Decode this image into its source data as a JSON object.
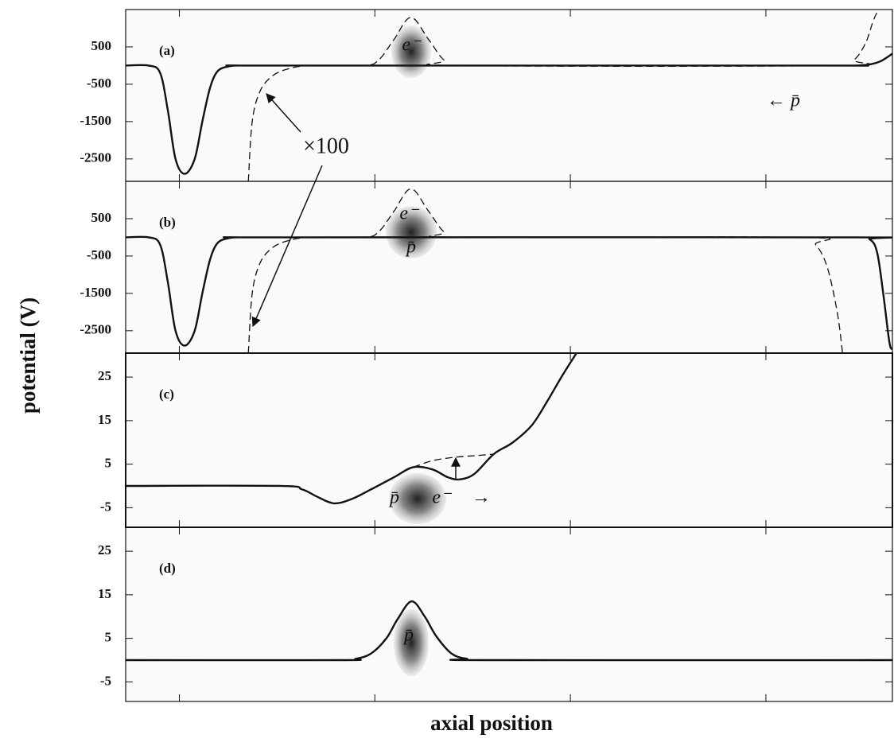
{
  "chart_data": [
    {
      "type": "line",
      "panel_label": "(a)",
      "ylabel": "potential (V)",
      "xlim": [
        0,
        100
      ],
      "xticks": [
        7,
        32.5,
        58,
        83.5
      ],
      "ylim": [
        -3100,
        1500
      ],
      "yticks": [
        500,
        -500,
        -1500,
        -2500
      ],
      "annotations": [
        "e⁻",
        "← p̄",
        "×100"
      ],
      "series": [
        {
          "style": "solid",
          "color": "#111111",
          "x": [
            0,
            3,
            4.5,
            5.5,
            6.5,
            7.7,
            9,
            10,
            11,
            12,
            13.5,
            15,
            20,
            90,
            95,
            97,
            98.5,
            100
          ],
          "values": [
            0,
            0,
            -200,
            -1200,
            -2500,
            -2900,
            -2500,
            -1500,
            -600,
            -150,
            -20,
            0,
            0,
            0,
            0,
            30,
            120,
            320
          ]
        },
        {
          "style": "dashed",
          "color": "#111111",
          "x": [
            16,
            16.5,
            17.5,
            19,
            21,
            24,
            31,
            33,
            35,
            37.2,
            39.5,
            41.5,
            43.5,
            93,
            95,
            96.5,
            97.5,
            98.2
          ],
          "values": [
            -3100,
            -1500,
            -700,
            -300,
            -100,
            0,
            0,
            150,
            700,
            1290,
            700,
            150,
            0,
            0,
            150,
            600,
            1200,
            1500
          ]
        }
      ]
    },
    {
      "type": "line",
      "panel_label": "(b)",
      "xlim": [
        0,
        100
      ],
      "xticks": [
        7,
        32.5,
        58,
        83.5
      ],
      "ylim": [
        -3100,
        1500
      ],
      "yticks": [
        500,
        -500,
        -1500,
        -2500
      ],
      "annotations": [
        "e⁻",
        "p̄"
      ],
      "series": [
        {
          "style": "solid",
          "color": "#111111",
          "x": [
            0,
            3,
            4.5,
            5.5,
            6.5,
            7.7,
            9,
            10,
            11,
            12,
            13.5,
            15,
            20,
            95,
            97,
            98,
            98.8,
            99.6,
            100
          ],
          "values": [
            0,
            0,
            -200,
            -1200,
            -2500,
            -2900,
            -2500,
            -1500,
            -600,
            -150,
            -20,
            0,
            0,
            0,
            -50,
            -400,
            -1500,
            -2800,
            -3000
          ]
        },
        {
          "style": "dashed",
          "color": "#111111",
          "x": [
            16,
            16.5,
            17.5,
            19,
            21,
            24,
            31,
            33,
            35,
            37.2,
            39.5,
            41.5,
            43.5,
            88,
            90,
            91.5,
            92.8,
            93.5
          ],
          "values": [
            -3100,
            -1500,
            -700,
            -300,
            -100,
            0,
            0,
            150,
            700,
            1300,
            700,
            150,
            0,
            0,
            -200,
            -800,
            -2000,
            -3100
          ]
        }
      ]
    },
    {
      "type": "line",
      "panel_label": "(c)",
      "xlim": [
        0,
        100
      ],
      "xticks": [
        7,
        32.5,
        58,
        83.5
      ],
      "ylim": [
        -9.5,
        30.5
      ],
      "yticks": [
        25,
        15,
        5,
        -5
      ],
      "annotations": [
        "p̄",
        "e⁻",
        "→"
      ],
      "series": [
        {
          "style": "solid",
          "color": "#111111",
          "x": [
            0,
            20,
            23,
            25,
            27.2,
            29.5,
            32,
            35,
            37.5,
            40,
            42,
            43.6,
            45.5,
            48,
            50.5,
            53,
            55,
            57,
            58.8
          ],
          "values": [
            0,
            0,
            -0.8,
            -2.5,
            -4,
            -3,
            -0.8,
            2,
            4.3,
            3.8,
            2,
            1.5,
            2.8,
            7.3,
            10,
            14,
            19.5,
            25.5,
            30.5
          ]
        },
        {
          "style": "dashed",
          "color": "#111111",
          "x": [
            37.5,
            40,
            43,
            46,
            48
          ],
          "values": [
            4.3,
            5.8,
            6.6,
            7,
            7.3
          ]
        }
      ]
    },
    {
      "type": "line",
      "panel_label": "(d)",
      "xlabel": "axial position",
      "xlim": [
        0,
        100
      ],
      "xticks": [
        7,
        32.5,
        58,
        83.5
      ],
      "ylim": [
        -9.5,
        30.5
      ],
      "yticks": [
        25,
        15,
        5,
        -5
      ],
      "annotations": [
        "p̄"
      ],
      "series": [
        {
          "style": "solid",
          "color": "#111111",
          "x": [
            0,
            28,
            30,
            32,
            34,
            35.5,
            37.3,
            39,
            40.5,
            42.5,
            44.5,
            47,
            100
          ],
          "values": [
            0,
            0,
            0.3,
            1.5,
            5,
            9.5,
            13.5,
            10,
            5.5,
            1.5,
            0.3,
            0,
            0
          ]
        }
      ]
    }
  ]
}
